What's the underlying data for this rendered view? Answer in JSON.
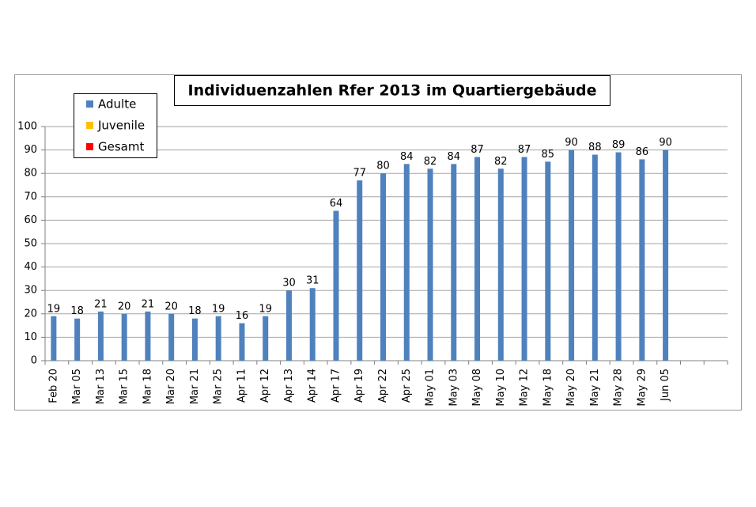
{
  "chart_data": {
    "type": "bar",
    "title": "Individuenzahlen Rfer 2013 im Quartiergebäude",
    "categories": [
      "Feb 20",
      "Mar 05",
      "Mar 13",
      "Mar 15",
      "Mar 18",
      "Mar 20",
      "Mar 21",
      "Mar 25",
      "Apr 11",
      "Apr 12",
      "Apr 13",
      "Apr 14",
      "Apr 17",
      "Apr 19",
      "Apr 22",
      "Apr 25",
      "May 01",
      "May 03",
      "May 08",
      "May 10",
      "May 12",
      "May 18",
      "May 20",
      "May 21",
      "May 28",
      "May 29",
      "Jun 05",
      null,
      null
    ],
    "series": [
      {
        "name": "Adulte",
        "color": "#4f81bd",
        "values": [
          19,
          18,
          21,
          20,
          21,
          20,
          18,
          19,
          16,
          19,
          30,
          31,
          64,
          77,
          80,
          84,
          82,
          84,
          87,
          82,
          87,
          85,
          90,
          88,
          89,
          86,
          90,
          null,
          null
        ]
      },
      {
        "name": "Juvenile",
        "color": "#ffc000",
        "values": [
          null,
          null,
          null,
          null,
          null,
          null,
          null,
          null,
          null,
          null,
          null,
          null,
          null,
          null,
          null,
          null,
          null,
          null,
          null,
          null,
          null,
          null,
          null,
          null,
          null,
          null,
          null,
          null,
          null
        ]
      },
      {
        "name": "Gesamt",
        "color": "#ff0000",
        "values": [
          null,
          null,
          null,
          null,
          null,
          null,
          null,
          null,
          null,
          null,
          null,
          null,
          null,
          null,
          null,
          null,
          null,
          null,
          null,
          null,
          null,
          null,
          null,
          null,
          null,
          null,
          null,
          null,
          null
        ]
      }
    ],
    "ylim": [
      0,
      100
    ],
    "yticks": [
      0,
      10,
      20,
      30,
      40,
      50,
      60,
      70,
      80,
      90,
      100
    ],
    "grid": true,
    "legend": "top-left"
  }
}
